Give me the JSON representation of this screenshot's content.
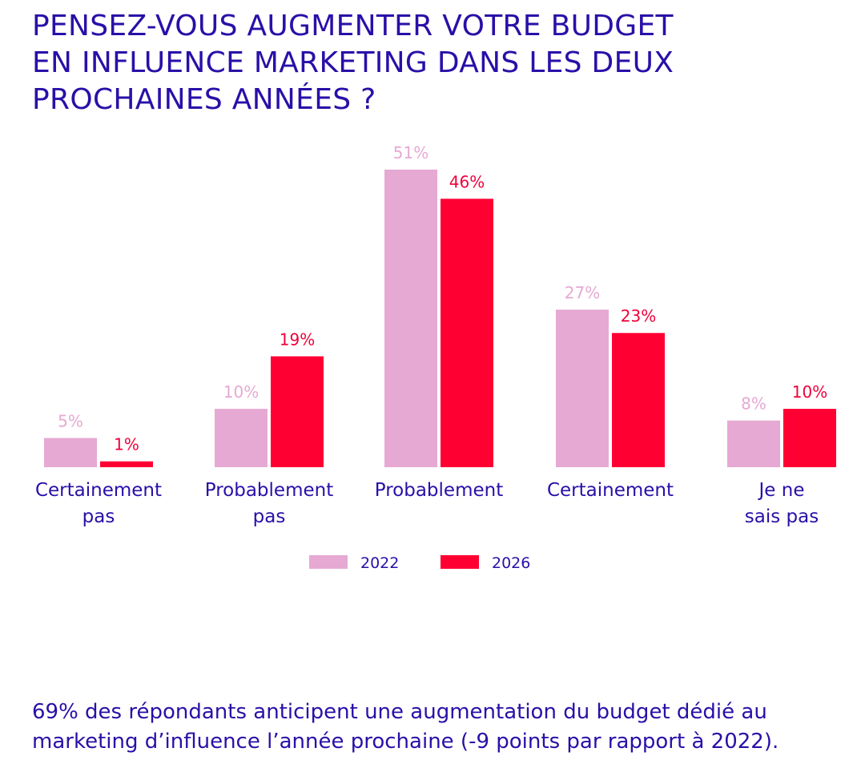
{
  "title_lines": [
    "PENSEZ-VOUS AUGMENTER VOTRE BUDGET",
    "EN INFLUENCE MARKETING DANS LES DEUX",
    "PROCHAINES ANNÉES ?"
  ],
  "footnote_lines": [
    "69% des répondants anticipent une augmentation du budget dédié au",
    "marketing d’influence l’année prochaine (-9 points par rapport à 2022)."
  ],
  "chart_data": {
    "type": "bar",
    "title": "PENSEZ-VOUS AUGMENTER VOTRE BUDGET EN INFLUENCE MARKETING DANS LES DEUX PROCHAINES ANNÉES ?",
    "xlabel": "",
    "ylabel": "",
    "grid": false,
    "legend_position": "bottom-center",
    "categories": [
      [
        "Certainement",
        "pas"
      ],
      [
        "Probablement",
        "pas"
      ],
      [
        "Probablement"
      ],
      [
        "Certainement"
      ],
      [
        "Je ne",
        "sais pas"
      ]
    ],
    "series": [
      {
        "name": "2022",
        "color": "#e6a9d3",
        "values": [
          5,
          10,
          51,
          27,
          8
        ],
        "labels": [
          "5%",
          "10%",
          "51%",
          "27%",
          "8%"
        ]
      },
      {
        "name": "2026",
        "color": "#ff0033",
        "values": [
          1,
          19,
          46,
          23,
          10
        ],
        "labels": [
          "1%",
          "19%",
          "46%",
          "23%",
          "10%"
        ]
      }
    ],
    "ylim": [
      0,
      51
    ]
  }
}
